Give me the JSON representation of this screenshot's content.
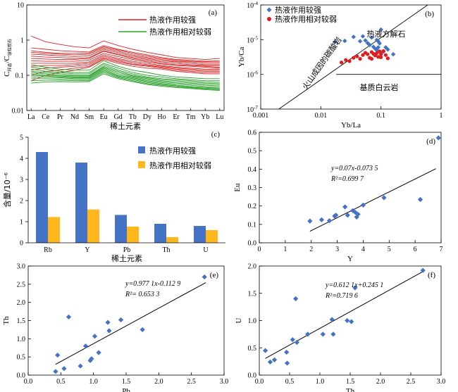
{
  "chart_data": [
    {
      "id": "a",
      "type": "line",
      "panel_label": "(a)",
      "ylabel_main": "C",
      "ylabel_sub1": "样品",
      "ylabel_sep": "/C",
      "ylabel_sub2": "球粒陨石",
      "xlabel": "稀土元素",
      "categories": [
        "La",
        "Ce",
        "Pr",
        "Nd",
        "Sm",
        "Eu",
        "Gd",
        "Tb",
        "Dy",
        "Ho",
        "Er",
        "Tm",
        "Yb",
        "Lu"
      ],
      "yscale": "log",
      "ylim": [
        0.01,
        10
      ],
      "yticks": [
        {
          "v": 0.01,
          "t": "0.01"
        },
        {
          "v": 0.1,
          "t": "0.1"
        },
        {
          "v": 1,
          "t": "1"
        },
        {
          "v": 10,
          "t": "10"
        }
      ],
      "legend": [
        {
          "name": "热液作用较强",
          "color": "#d62728"
        },
        {
          "name": "热液作用相对较弱",
          "color": "#2ca02c"
        }
      ],
      "series": [
        {
          "group": 0,
          "values": [
            1.3,
            0.9,
            0.75,
            0.65,
            0.6,
            0.95,
            0.7,
            0.55,
            0.45,
            0.38,
            0.32,
            0.3,
            0.28,
            0.3
          ]
        },
        {
          "group": 0,
          "values": [
            0.6,
            0.55,
            0.5,
            0.48,
            0.46,
            0.7,
            0.55,
            0.45,
            0.38,
            0.32,
            0.28,
            0.27,
            0.25,
            0.26
          ]
        },
        {
          "group": 0,
          "values": [
            0.5,
            0.45,
            0.42,
            0.42,
            0.43,
            0.65,
            0.52,
            0.42,
            0.35,
            0.3,
            0.27,
            0.25,
            0.24,
            0.24
          ]
        },
        {
          "group": 0,
          "values": [
            0.45,
            0.42,
            0.4,
            0.38,
            0.4,
            0.6,
            0.48,
            0.38,
            0.32,
            0.28,
            0.25,
            0.24,
            0.22,
            0.22
          ]
        },
        {
          "group": 0,
          "values": [
            0.4,
            0.38,
            0.36,
            0.34,
            0.36,
            0.55,
            0.44,
            0.35,
            0.3,
            0.26,
            0.24,
            0.22,
            0.2,
            0.2
          ]
        },
        {
          "group": 0,
          "values": [
            0.35,
            0.33,
            0.32,
            0.3,
            0.32,
            0.5,
            0.4,
            0.32,
            0.28,
            0.24,
            0.22,
            0.2,
            0.19,
            0.19
          ]
        },
        {
          "group": 0,
          "values": [
            0.3,
            0.29,
            0.28,
            0.28,
            0.3,
            0.48,
            0.38,
            0.3,
            0.26,
            0.22,
            0.2,
            0.19,
            0.18,
            0.17
          ]
        },
        {
          "group": 0,
          "values": [
            0.26,
            0.25,
            0.25,
            0.25,
            0.27,
            0.42,
            0.34,
            0.28,
            0.24,
            0.21,
            0.19,
            0.18,
            0.17,
            0.16
          ]
        },
        {
          "group": 0,
          "values": [
            0.22,
            0.22,
            0.22,
            0.22,
            0.24,
            0.38,
            0.3,
            0.25,
            0.22,
            0.19,
            0.17,
            0.16,
            0.15,
            0.15
          ]
        },
        {
          "group": 0,
          "values": [
            0.18,
            0.19,
            0.19,
            0.2,
            0.22,
            0.35,
            0.28,
            0.23,
            0.2,
            0.18,
            0.16,
            0.15,
            0.14,
            0.14
          ]
        },
        {
          "group": 0,
          "values": [
            0.14,
            0.16,
            0.17,
            0.18,
            0.2,
            0.32,
            0.26,
            0.21,
            0.19,
            0.17,
            0.15,
            0.14,
            0.13,
            0.13
          ]
        },
        {
          "group": 0,
          "values": [
            0.1,
            0.13,
            0.14,
            0.16,
            0.18,
            0.3,
            0.24,
            0.2,
            0.18,
            0.16,
            0.14,
            0.13,
            0.12,
            0.12
          ]
        },
        {
          "group": 0,
          "values": [
            0.07,
            0.1,
            0.12,
            0.14,
            0.17,
            0.28,
            0.22,
            0.18,
            0.16,
            0.15,
            0.13,
            0.12,
            0.11,
            0.11
          ]
        },
        {
          "group": 1,
          "values": [
            0.2,
            0.17,
            0.15,
            0.14,
            0.14,
            0.26,
            0.18,
            0.14,
            0.12,
            0.1,
            0.09,
            0.085,
            0.08,
            0.08
          ]
        },
        {
          "group": 1,
          "values": [
            0.17,
            0.15,
            0.13,
            0.12,
            0.12,
            0.22,
            0.16,
            0.12,
            0.1,
            0.09,
            0.08,
            0.075,
            0.07,
            0.07
          ]
        },
        {
          "group": 1,
          "values": [
            0.15,
            0.13,
            0.12,
            0.11,
            0.11,
            0.2,
            0.14,
            0.11,
            0.09,
            0.08,
            0.075,
            0.07,
            0.065,
            0.063
          ]
        },
        {
          "group": 1,
          "values": [
            0.13,
            0.12,
            0.11,
            0.1,
            0.1,
            0.18,
            0.13,
            0.1,
            0.085,
            0.075,
            0.07,
            0.065,
            0.06,
            0.058
          ]
        },
        {
          "group": 1,
          "values": [
            0.12,
            0.11,
            0.1,
            0.095,
            0.095,
            0.17,
            0.12,
            0.095,
            0.08,
            0.07,
            0.065,
            0.06,
            0.056,
            0.054
          ]
        },
        {
          "group": 1,
          "values": [
            0.11,
            0.1,
            0.095,
            0.09,
            0.09,
            0.16,
            0.11,
            0.09,
            0.075,
            0.066,
            0.06,
            0.056,
            0.052,
            0.05
          ]
        },
        {
          "group": 1,
          "values": [
            0.1,
            0.095,
            0.09,
            0.085,
            0.085,
            0.15,
            0.1,
            0.085,
            0.07,
            0.062,
            0.056,
            0.052,
            0.048,
            0.046
          ]
        },
        {
          "group": 1,
          "values": [
            0.09,
            0.088,
            0.085,
            0.08,
            0.08,
            0.14,
            0.095,
            0.08,
            0.066,
            0.058,
            0.052,
            0.048,
            0.045,
            0.043
          ]
        },
        {
          "group": 1,
          "values": [
            0.08,
            0.08,
            0.078,
            0.075,
            0.075,
            0.13,
            0.09,
            0.075,
            0.062,
            0.055,
            0.05,
            0.046,
            0.043,
            0.041
          ]
        },
        {
          "group": 1,
          "values": [
            0.07,
            0.072,
            0.072,
            0.07,
            0.07,
            0.12,
            0.085,
            0.07,
            0.058,
            0.052,
            0.047,
            0.044,
            0.041,
            0.039
          ]
        },
        {
          "group": 1,
          "values": [
            0.06,
            0.065,
            0.066,
            0.065,
            0.066,
            0.11,
            0.08,
            0.066,
            0.055,
            0.049,
            0.045,
            0.042,
            0.039,
            0.037
          ]
        }
      ]
    },
    {
      "id": "b",
      "type": "scatter",
      "panel_label": "(b)",
      "xlabel": "Yb/La",
      "ylabel": "Yb/Ca",
      "xscale": "log",
      "yscale": "log",
      "xlim": [
        0.001,
        1
      ],
      "ylim": [
        1e-07,
        0.0001
      ],
      "xticks": [
        {
          "v": 0.001,
          "t": "0.001"
        },
        {
          "v": 0.01,
          "t": "0.01"
        },
        {
          "v": 0.1,
          "t": "0.1"
        },
        {
          "v": 1,
          "t": "1"
        }
      ],
      "yticks": [
        {
          "v": 1e-07,
          "base": "10",
          "exp": "-7"
        },
        {
          "v": 1e-06,
          "base": "10",
          "exp": "-6"
        },
        {
          "v": 1e-05,
          "base": "10",
          "exp": "-5"
        },
        {
          "v": 0.0001,
          "base": "10",
          "exp": "-4"
        }
      ],
      "legend": [
        {
          "name": "热液作用较强",
          "color": "#4472c4",
          "marker": "diamond"
        },
        {
          "name": "热液作用相对较弱",
          "color": "#e31a1c",
          "marker": "circle"
        }
      ],
      "region_labels": [
        {
          "text": "热液方解石"
        },
        {
          "text": "基质白云岩"
        },
        {
          "text": "火山成因的碳酸岩"
        }
      ],
      "boundary_diagonal": [
        [
          0.002,
          1e-07
        ],
        [
          0.6,
          0.0001
        ]
      ],
      "boundary_horizontal": {
        "y": 1e-06,
        "x": [
          0.018,
          1
        ]
      },
      "series": [
        {
          "name": "热液作用较强",
          "points": [
            [
              0.017,
              8.5e-06
            ],
            [
              0.025,
              9.2e-06
            ],
            [
              0.035,
              1.2e-05
            ],
            [
              0.045,
              9e-06
            ],
            [
              0.05,
              1.25e-05
            ],
            [
              0.055,
              9.5e-06
            ],
            [
              0.06,
              8e-06
            ],
            [
              0.065,
              7e-06
            ],
            [
              0.07,
              1.15e-05
            ],
            [
              0.075,
              6.2e-06
            ],
            [
              0.08,
              5.5e-06
            ],
            [
              0.085,
              5e-06
            ],
            [
              0.09,
              9e-06
            ],
            [
              0.095,
              7.8e-06
            ],
            [
              0.1,
              1.95e-05
            ],
            [
              0.1,
              4.2e-06
            ],
            [
              0.11,
              4.5e-06
            ],
            [
              0.12,
              6e-06
            ],
            [
              0.13,
              5.2e-06
            ],
            [
              0.16,
              3.8e-06
            ],
            [
              0.085,
              9.8e-06
            ],
            [
              0.09,
              6e-06
            ]
          ]
        },
        {
          "name": "热液作用相对较弱",
          "points": [
            [
              0.022,
              2.2e-06
            ],
            [
              0.026,
              2.6e-06
            ],
            [
              0.03,
              2.4e-06
            ],
            [
              0.035,
              3e-06
            ],
            [
              0.04,
              3.3e-06
            ],
            [
              0.045,
              2.8e-06
            ],
            [
              0.05,
              3.6e-06
            ],
            [
              0.055,
              4.2e-06
            ],
            [
              0.06,
              3.8e-06
            ],
            [
              0.065,
              3e-06
            ],
            [
              0.07,
              4.4e-06
            ],
            [
              0.075,
              3.9e-06
            ],
            [
              0.08,
              3.5e-06
            ],
            [
              0.085,
              4.1e-06
            ],
            [
              0.09,
              3.2e-06
            ],
            [
              0.095,
              4.6e-06
            ],
            [
              0.1,
              3.8e-06
            ],
            [
              0.11,
              4.7e-06
            ],
            [
              0.12,
              3.6e-06
            ],
            [
              0.13,
              2.9e-06
            ],
            [
              0.07,
              2.8e-06
            ],
            [
              0.1,
              3.1e-06
            ]
          ]
        }
      ]
    },
    {
      "id": "c",
      "type": "bar",
      "panel_label": "(c)",
      "ylabel": "含量/10⁻⁶",
      "xlabel": "稀土元素",
      "categories": [
        "Rb",
        "Y",
        "Pb",
        "Th",
        "U"
      ],
      "ylim": [
        0,
        5
      ],
      "yticks": [
        0,
        1,
        2,
        3,
        4,
        5
      ],
      "series": [
        {
          "name": "热液作用较强",
          "color": "#4472c4",
          "values": [
            4.3,
            3.8,
            1.32,
            0.9,
            0.8
          ]
        },
        {
          "name": "热液作用相对较弱",
          "color": "#ffb71e",
          "values": [
            1.22,
            1.58,
            0.77,
            0.27,
            0.6
          ]
        }
      ]
    },
    {
      "id": "d",
      "type": "scatter",
      "panel_label": "(d)",
      "xlabel": "Y",
      "ylabel": "Eu",
      "xlim": [
        0,
        7
      ],
      "ylim": [
        0,
        0.6
      ],
      "xticks": [
        0,
        1,
        2,
        3,
        4,
        5,
        6,
        7
      ],
      "yticks": [
        0,
        0.1,
        0.2,
        0.3,
        0.4,
        0.5,
        0.6
      ],
      "yfmt": 1,
      "color": "#4472c4",
      "equation": "y=0.07x-0.073 5",
      "r2": "R²=0.699 7",
      "fit": {
        "slope": 0.07,
        "intercept": -0.0735,
        "x": [
          1.95,
          6.8
        ]
      },
      "points": [
        [
          1.95,
          0.118
        ],
        [
          2.4,
          0.125
        ],
        [
          2.7,
          0.12
        ],
        [
          2.9,
          0.145
        ],
        [
          2.95,
          0.15
        ],
        [
          3.3,
          0.195
        ],
        [
          3.4,
          0.15
        ],
        [
          3.6,
          0.175
        ],
        [
          3.7,
          0.165
        ],
        [
          3.75,
          0.14
        ],
        [
          3.8,
          0.155
        ],
        [
          4.0,
          0.205
        ],
        [
          4.8,
          0.245
        ],
        [
          6.2,
          0.235
        ],
        [
          6.9,
          0.57
        ]
      ]
    },
    {
      "id": "e",
      "type": "scatter",
      "panel_label": "(e)",
      "xlabel": "Pb",
      "ylabel": "Th",
      "xlim": [
        0,
        3
      ],
      "ylim": [
        0,
        3
      ],
      "xticks": [
        0,
        0.5,
        1,
        1.5,
        2,
        2.5,
        3
      ],
      "yticks": [
        0,
        0.5,
        1,
        1.5,
        2,
        2.5,
        3
      ],
      "xfmt": 1,
      "yfmt": 1,
      "color": "#4472c4",
      "equation": "y=0.977 1x-0.112 9",
      "r2": "R²= 0.653 3",
      "fit": {
        "slope": 0.9771,
        "intercept": -0.1129,
        "x": [
          0.42,
          2.72
        ]
      },
      "points": [
        [
          0.42,
          0.1
        ],
        [
          0.45,
          0.55
        ],
        [
          0.55,
          0.18
        ],
        [
          0.62,
          1.6
        ],
        [
          0.8,
          0.25
        ],
        [
          0.88,
          0.8
        ],
        [
          0.95,
          0.4
        ],
        [
          0.97,
          0.45
        ],
        [
          1.02,
          1.07
        ],
        [
          1.08,
          0.62
        ],
        [
          1.22,
          1.45
        ],
        [
          1.24,
          1.22
        ],
        [
          1.42,
          1.52
        ],
        [
          1.75,
          1.25
        ],
        [
          2.7,
          2.7
        ]
      ]
    },
    {
      "id": "f",
      "type": "scatter",
      "panel_label": "(f)",
      "xlabel": "Th",
      "ylabel": "U",
      "xlim": [
        0,
        3
      ],
      "ylim": [
        0,
        2
      ],
      "xticks": [
        0,
        0.5,
        1,
        1.5,
        2,
        2.5,
        3
      ],
      "yticks": [
        0,
        0.5,
        1,
        1.5,
        2
      ],
      "xfmt": 1,
      "yfmt": 1,
      "color": "#4472c4",
      "equation": "y=0.612 1x+0.245 1",
      "r2": "R²=0.719 6",
      "fit": {
        "slope": 0.6121,
        "intercept": 0.2451,
        "x": [
          0.1,
          2.72
        ]
      },
      "points": [
        [
          0.1,
          0.45
        ],
        [
          0.18,
          0.24
        ],
        [
          0.25,
          0.28
        ],
        [
          0.45,
          0.42
        ],
        [
          0.46,
          0.22
        ],
        [
          0.55,
          0.65
        ],
        [
          0.6,
          1.4
        ],
        [
          0.62,
          0.6
        ],
        [
          0.8,
          0.75
        ],
        [
          1.05,
          0.75
        ],
        [
          1.2,
          1.02
        ],
        [
          1.22,
          0.75
        ],
        [
          1.45,
          1.0
        ],
        [
          1.52,
          0.98
        ],
        [
          1.58,
          1.6
        ],
        [
          2.7,
          1.92
        ]
      ]
    }
  ]
}
